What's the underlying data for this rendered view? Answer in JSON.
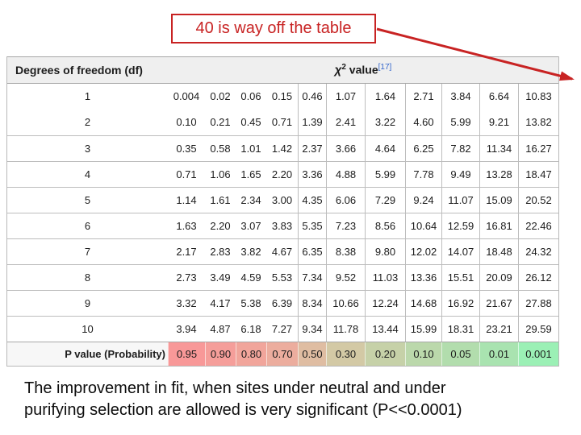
{
  "annotation": {
    "text": "40 is way off the table",
    "color": "#c82323"
  },
  "table": {
    "header": {
      "df_label": "Degrees of freedom (df)",
      "chi_symbol": "χ",
      "chi_sup": "2",
      "value_label": " value",
      "ref": "[17]",
      "ref_color": "#3366cc"
    },
    "rows": [
      {
        "df": "1",
        "values": [
          "0.004",
          "0.02",
          "0.06",
          "0.15",
          "0.46",
          "1.07",
          "1.64",
          "2.71",
          "3.84",
          "6.64",
          "10.83"
        ]
      },
      {
        "df": "2",
        "values": [
          "0.10",
          "0.21",
          "0.45",
          "0.71",
          "1.39",
          "2.41",
          "3.22",
          "4.60",
          "5.99",
          "9.21",
          "13.82"
        ]
      },
      {
        "df": "3",
        "values": [
          "0.35",
          "0.58",
          "1.01",
          "1.42",
          "2.37",
          "3.66",
          "4.64",
          "6.25",
          "7.82",
          "11.34",
          "16.27"
        ]
      },
      {
        "df": "4",
        "values": [
          "0.71",
          "1.06",
          "1.65",
          "2.20",
          "3.36",
          "4.88",
          "5.99",
          "7.78",
          "9.49",
          "13.28",
          "18.47"
        ]
      },
      {
        "df": "5",
        "values": [
          "1.14",
          "1.61",
          "2.34",
          "3.00",
          "4.35",
          "6.06",
          "7.29",
          "9.24",
          "11.07",
          "15.09",
          "20.52"
        ]
      },
      {
        "df": "6",
        "values": [
          "1.63",
          "2.20",
          "3.07",
          "3.83",
          "5.35",
          "7.23",
          "8.56",
          "10.64",
          "12.59",
          "16.81",
          "22.46"
        ]
      },
      {
        "df": "7",
        "values": [
          "2.17",
          "2.83",
          "3.82",
          "4.67",
          "6.35",
          "8.38",
          "9.80",
          "12.02",
          "14.07",
          "18.48",
          "24.32"
        ]
      },
      {
        "df": "8",
        "values": [
          "2.73",
          "3.49",
          "4.59",
          "5.53",
          "7.34",
          "9.52",
          "11.03",
          "13.36",
          "15.51",
          "20.09",
          "26.12"
        ]
      },
      {
        "df": "9",
        "values": [
          "3.32",
          "4.17",
          "5.38",
          "6.39",
          "8.34",
          "10.66",
          "12.24",
          "14.68",
          "16.92",
          "21.67",
          "27.88"
        ]
      },
      {
        "df": "10",
        "values": [
          "3.94",
          "4.87",
          "6.18",
          "7.27",
          "9.34",
          "11.78",
          "13.44",
          "15.99",
          "18.31",
          "23.21",
          "29.59"
        ]
      }
    ],
    "p_row": {
      "label": "P value (Probability)",
      "values": [
        "0.95",
        "0.90",
        "0.80",
        "0.70",
        "0.50",
        "0.30",
        "0.20",
        "0.10",
        "0.05",
        "0.01",
        "0.001"
      ],
      "colors": [
        "#f89898",
        "#f59e9a",
        "#f1a59b",
        "#ecad9e",
        "#dfbda2",
        "#d3c9a5",
        "#c6d1a8",
        "#bbd8ab",
        "#b2ddad",
        "#a9e3b0",
        "#9bf0b5"
      ]
    }
  },
  "caption": {
    "line1": "The improvement in fit, when sites under neutral and under",
    "line2": "purifying selection are allowed is very significant (P<<0.0001)"
  },
  "chart_data": {
    "type": "table",
    "title": "Chi-squared critical values",
    "row_header": "Degrees of freedom (df)",
    "column_header": "P value (Probability)",
    "p_values": [
      0.95,
      0.9,
      0.8,
      0.7,
      0.5,
      0.3,
      0.2,
      0.1,
      0.05,
      0.01,
      0.001
    ],
    "df": [
      1,
      2,
      3,
      4,
      5,
      6,
      7,
      8,
      9,
      10
    ],
    "chi2_values": [
      [
        0.004,
        0.02,
        0.06,
        0.15,
        0.46,
        1.07,
        1.64,
        2.71,
        3.84,
        6.64,
        10.83
      ],
      [
        0.1,
        0.21,
        0.45,
        0.71,
        1.39,
        2.41,
        3.22,
        4.6,
        5.99,
        9.21,
        13.82
      ],
      [
        0.35,
        0.58,
        1.01,
        1.42,
        2.37,
        3.66,
        4.64,
        6.25,
        7.82,
        11.34,
        16.27
      ],
      [
        0.71,
        1.06,
        1.65,
        2.2,
        3.36,
        4.88,
        5.99,
        7.78,
        9.49,
        13.28,
        18.47
      ],
      [
        1.14,
        1.61,
        2.34,
        3.0,
        4.35,
        6.06,
        7.29,
        9.24,
        11.07,
        15.09,
        20.52
      ],
      [
        1.63,
        2.2,
        3.07,
        3.83,
        5.35,
        7.23,
        8.56,
        10.64,
        12.59,
        16.81,
        22.46
      ],
      [
        2.17,
        2.83,
        3.82,
        4.67,
        6.35,
        8.38,
        9.8,
        12.02,
        14.07,
        18.48,
        24.32
      ],
      [
        2.73,
        3.49,
        4.59,
        5.53,
        7.34,
        9.52,
        11.03,
        13.36,
        15.51,
        20.09,
        26.12
      ],
      [
        3.32,
        4.17,
        5.38,
        6.39,
        8.34,
        10.66,
        12.24,
        14.68,
        16.92,
        21.67,
        27.88
      ],
      [
        3.94,
        4.87,
        6.18,
        7.27,
        9.34,
        11.78,
        13.44,
        15.99,
        18.31,
        23.21,
        29.59
      ]
    ]
  }
}
